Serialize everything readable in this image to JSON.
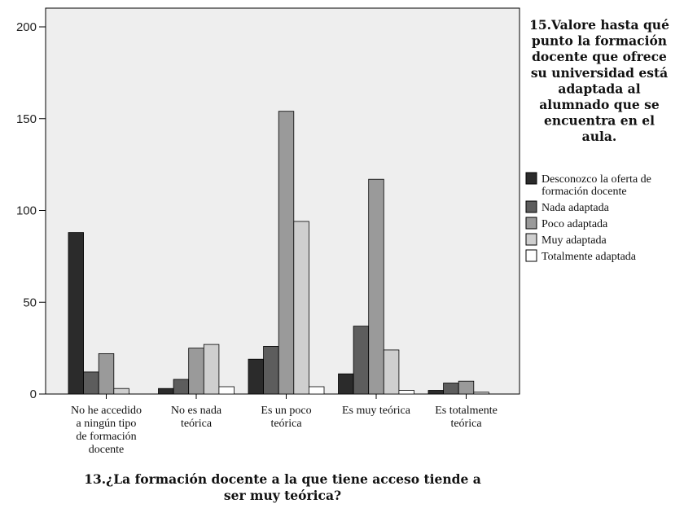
{
  "chart_data": {
    "type": "bar",
    "title": "",
    "xlabel_lines": [
      "13.¿La formación docente a la que tiene acceso tiende a",
      "ser muy teórica?"
    ],
    "ylabel": "",
    "ylim": [
      0,
      200
    ],
    "yticks": [
      0,
      50,
      100,
      150,
      200
    ],
    "grid": false,
    "legend_position": "right",
    "legend_title_lines": [
      "15.Valore hasta qué",
      "punto la formación",
      "docente que ofrece",
      "su universidad está",
      "adaptada al",
      "alumnado que se",
      "encuentra en el",
      "aula."
    ],
    "categories": [
      [
        "No he accedido",
        "a ningún tipo",
        "de formación",
        "docente"
      ],
      [
        "No es nada",
        "teórica"
      ],
      [
        "Es un poco",
        "teórica"
      ],
      [
        "Es muy teórica"
      ],
      [
        "Es totalmente",
        "teórica"
      ]
    ],
    "series": [
      {
        "name_lines": [
          "Desconozco la oferta de",
          "formación docente"
        ],
        "color": "#2b2b2b",
        "values": [
          88,
          3,
          19,
          11,
          2
        ]
      },
      {
        "name_lines": [
          "Nada adaptada"
        ],
        "color": "#5d5d5d",
        "values": [
          12,
          8,
          26,
          37,
          6
        ]
      },
      {
        "name_lines": [
          "Poco adaptada"
        ],
        "color": "#9a9a9a",
        "values": [
          22,
          25,
          154,
          117,
          7
        ]
      },
      {
        "name_lines": [
          "Muy adaptada"
        ],
        "color": "#cfcfcf",
        "values": [
          3,
          27,
          94,
          24,
          1
        ]
      },
      {
        "name_lines": [
          "Totalmente adaptada"
        ],
        "color": "#ffffff",
        "values": [
          0,
          4,
          4,
          2,
          0
        ]
      }
    ],
    "plot_background": "#eeeeee",
    "bar_outline": "#000000"
  }
}
